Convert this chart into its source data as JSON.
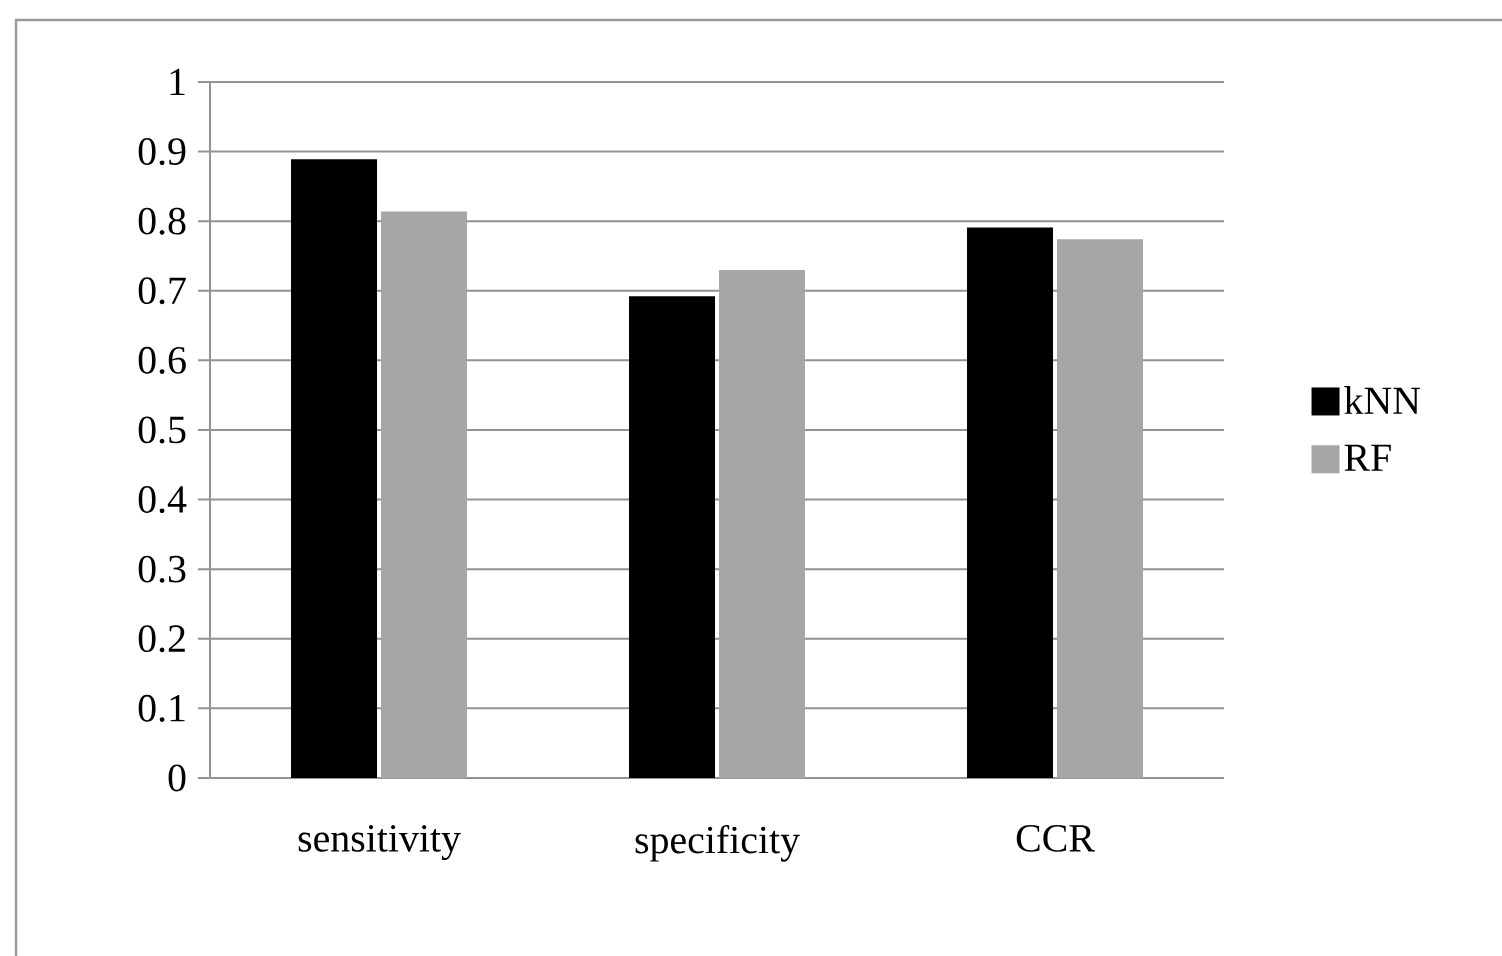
{
  "chart_data": {
    "type": "bar",
    "categories": [
      "sensitivity",
      "specificity",
      "CCR"
    ],
    "series": [
      {
        "name": "kNN",
        "color": "#000000",
        "values": [
          0.889,
          0.692,
          0.791
        ]
      },
      {
        "name": "RF",
        "color": "#a6a6a6",
        "values": [
          0.814,
          0.73,
          0.774
        ]
      }
    ],
    "ylim": [
      0,
      1
    ],
    "yticks": [
      0,
      0.1,
      0.2,
      0.3,
      0.4,
      0.5,
      0.6,
      0.7,
      0.8,
      0.9,
      1
    ],
    "grid": "y",
    "legend": "right"
  }
}
